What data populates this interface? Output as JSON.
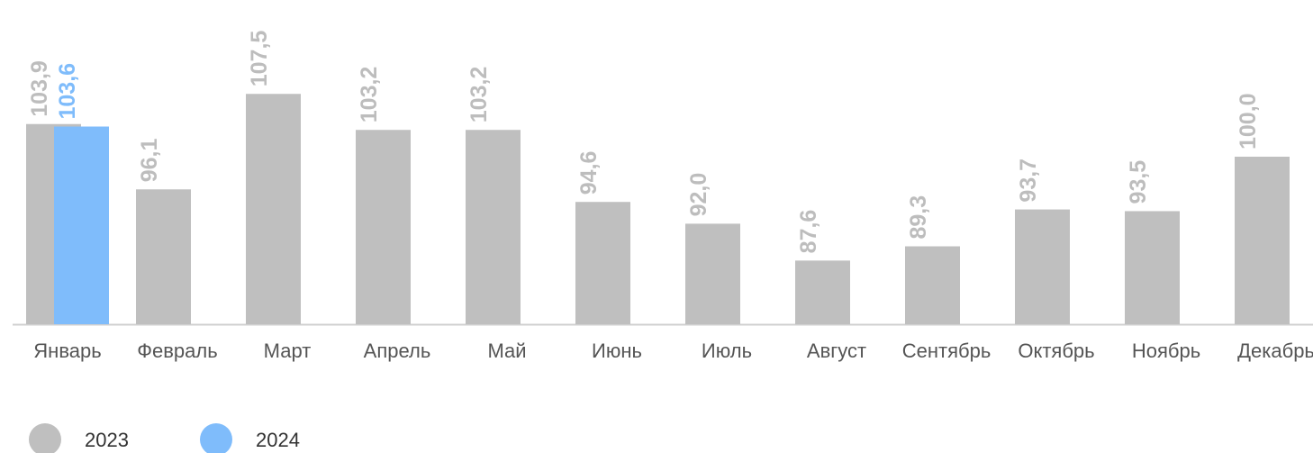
{
  "chart_data": {
    "type": "bar",
    "categories": [
      "Январь",
      "Февраль",
      "Март",
      "Апрель",
      "Май",
      "Июнь",
      "Июль",
      "Август",
      "Сентябрь",
      "Октябрь",
      "Ноябрь",
      "Декабрь"
    ],
    "series": [
      {
        "name": "2023",
        "color": "#bfbfbf",
        "values": [
          103.9,
          96.1,
          107.5,
          103.2,
          103.2,
          94.6,
          92.0,
          87.6,
          89.3,
          93.7,
          93.5,
          100.0
        ],
        "value_labels": [
          "103,9",
          "96,1",
          "107,5",
          "103,2",
          "103,2",
          "94,6",
          "92,0",
          "87,6",
          "89,3",
          "93,7",
          "93,5",
          "100,0"
        ]
      },
      {
        "name": "2024",
        "color": "#7fbcfb",
        "values": [
          103.6,
          null,
          null,
          null,
          null,
          null,
          null,
          null,
          null,
          null,
          null,
          null
        ],
        "value_labels": [
          "103,6",
          null,
          null,
          null,
          null,
          null,
          null,
          null,
          null,
          null,
          null,
          null
        ]
      }
    ],
    "ylim": [
      80,
      118
    ]
  }
}
